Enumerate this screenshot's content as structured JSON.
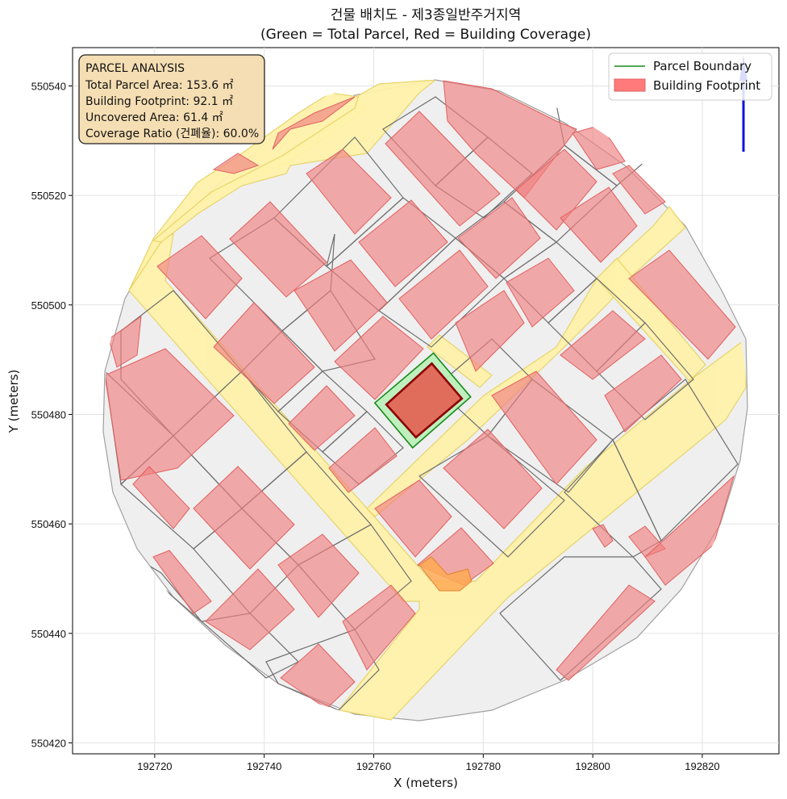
{
  "chart_data": {
    "type": "map",
    "title": "건물 배치도 - 제3종일반주거지역",
    "subtitle": "(Green = Total Parcel, Red = Building Coverage)",
    "xlabel": "X (meters)",
    "ylabel": "Y (meters)",
    "xlim": [
      192705,
      192834
    ],
    "ylim": [
      550418,
      550547
    ],
    "x_ticks": [
      192720,
      192740,
      192760,
      192780,
      192800,
      192820
    ],
    "y_ticks": [
      550420,
      550440,
      550460,
      550480,
      550500,
      550520,
      550540
    ],
    "grid": true,
    "legend_position": "top-right",
    "legend": [
      {
        "label": "Parcel Boundary",
        "color": "#1a8a1a",
        "kind": "line"
      },
      {
        "label": "Building Footprint",
        "color": "#ff7b7b",
        "kind": "patch"
      }
    ],
    "annotation": {
      "lines": [
        "PARCEL ANALYSIS",
        "Total Parcel Area: 153.6 ㎡",
        "Building Footprint: 92.1 ㎡",
        "Uncovered Area: 61.4 ㎡",
        "Coverage Ratio (건폐율): 60.0%"
      ]
    },
    "target_parcel": {
      "area_m2": 153.6,
      "footprint_m2": 92.1,
      "uncovered_m2": 61.4,
      "coverage_ratio_pct": 60.0,
      "boundary": [
        [
          192760.2,
          550482.1
        ],
        [
          192770.9,
          550491.2
        ],
        [
          192777.7,
          550483.2
        ],
        [
          192767.1,
          550473.9
        ]
      ],
      "building": [
        [
          192762.3,
          550481.8
        ],
        [
          192770.6,
          550489.3
        ],
        [
          192776.1,
          550482.9
        ],
        [
          192767.7,
          550475.8
        ]
      ]
    },
    "study_area_circle": {
      "center": [
        192768,
        550481
      ],
      "radius": 59
    },
    "roads": [
      [
        [
          192712.5,
          550502.6
        ],
        [
          192719.3,
          550512.0
        ],
        [
          192740.5,
          550527.6
        ],
        [
          192768.0,
          550541.4
        ],
        [
          192746.7,
          550540.8
        ],
        [
          192728.8,
          550521.6
        ],
        [
          192744.3,
          550511.1
        ],
        [
          192717.9,
          550504.5
        ],
        [
          192764.2,
          550459.3
        ],
        [
          192767.3,
          550464.7
        ],
        [
          192791.6,
          550487.5
        ],
        [
          192801.8,
          550494.6
        ],
        [
          192790.0,
          550497.2
        ],
        [
          192773.8,
          550486.7
        ],
        [
          192768.8,
          550492.4
        ],
        [
          192777.8,
          550487.8
        ],
        [
          192746.5,
          550459.3
        ],
        [
          192765.6,
          550455.5
        ],
        [
          192768.7,
          550436.7
        ]
      ],
      [
        [
          192788.6,
          550473.6
        ],
        [
          192796.1,
          550484.6
        ],
        [
          192823.8,
          550483.0
        ],
        [
          192823.0,
          550494.1
        ],
        [
          192810.8,
          550514.8
        ],
        [
          192815.5,
          550509.2
        ],
        [
          192793.5,
          550491.5
        ]
      ]
    ],
    "road_color": "#fff2aa"
  }
}
